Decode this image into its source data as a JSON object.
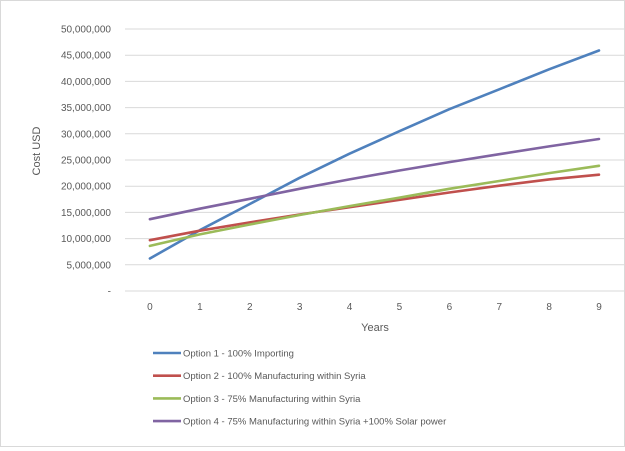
{
  "chart_data": {
    "type": "line",
    "title": "",
    "xlabel": "Years",
    "ylabel": "Cost USD",
    "x": [
      0,
      1,
      2,
      3,
      4,
      5,
      6,
      7,
      8,
      9
    ],
    "ylim": [
      0,
      50000000
    ],
    "yticks": [
      0,
      5000000,
      10000000,
      15000000,
      20000000,
      25000000,
      30000000,
      35000000,
      40000000,
      45000000,
      50000000
    ],
    "ytick_labels": [
      "-",
      "5,000,000",
      "10,000,000",
      "15,000,000",
      "20,000,000",
      "25,000,000",
      "30,000,000",
      "35,000,000",
      "40,000,000",
      "45,000,000",
      "50,000,000"
    ],
    "grid": "horizontal",
    "legend_position": "bottom",
    "series": [
      {
        "name": "Option 1 - 100% Importing",
        "color": "#4F81BD",
        "values": [
          6200000,
          11600000,
          16600000,
          21600000,
          26200000,
          30500000,
          34700000,
          38500000,
          42300000,
          45900000
        ]
      },
      {
        "name": "Option 2 - 100% Manufacturing within Syria",
        "color": "#C0504D",
        "values": [
          9700000,
          11500000,
          13100000,
          14600000,
          16000000,
          17400000,
          18800000,
          20100000,
          21300000,
          22200000
        ]
      },
      {
        "name": "Option 3 - 75% Manufacturing within Syria",
        "color": "#9BBB59",
        "values": [
          8600000,
          10800000,
          12700000,
          14500000,
          16200000,
          17800000,
          19500000,
          21000000,
          22500000,
          23900000
        ]
      },
      {
        "name": "Option 4 - 75% Manufacturing within Syria +100%  Solar power",
        "color": "#8064A2",
        "values": [
          13700000,
          15700000,
          17600000,
          19500000,
          21300000,
          23000000,
          24600000,
          26100000,
          27600000,
          29000000
        ]
      }
    ]
  }
}
